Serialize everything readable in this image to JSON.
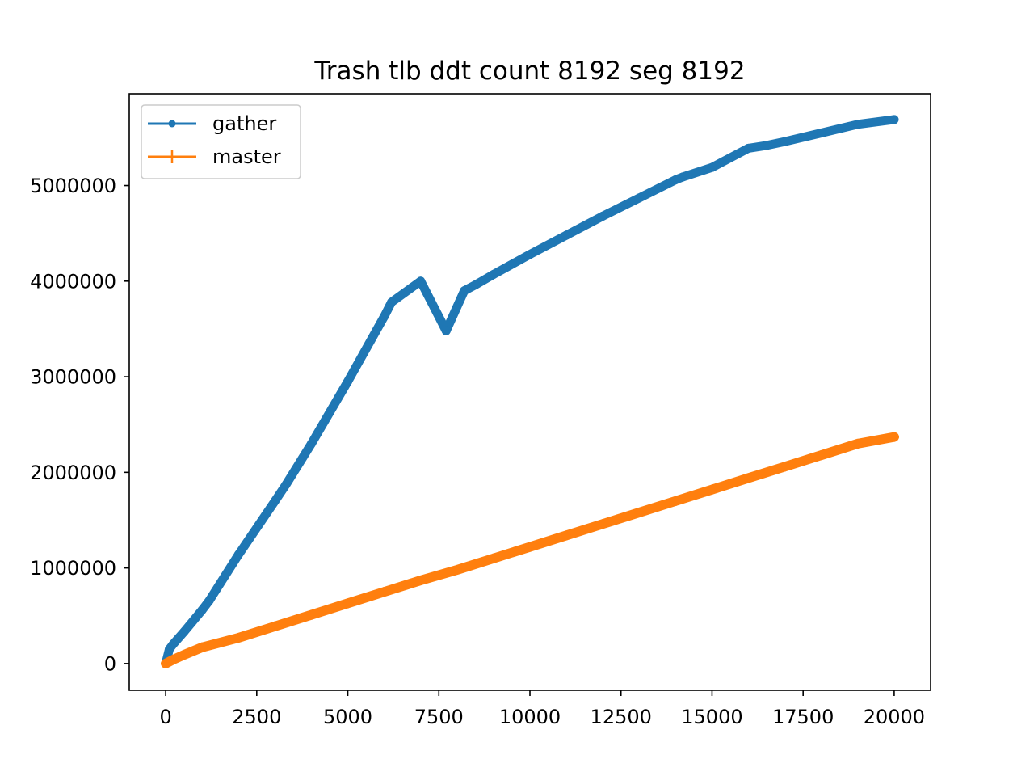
{
  "chart_data": {
    "type": "line",
    "title": "Trash tlb ddt count 8192 seg 8192",
    "xlabel": "",
    "ylabel": "",
    "xlim": [
      -1000,
      21000
    ],
    "ylim": [
      -280000,
      5960000
    ],
    "x_ticks": [
      0,
      2500,
      5000,
      7500,
      10000,
      12500,
      15000,
      17500,
      20000
    ],
    "x_tick_labels": [
      "0",
      "2500",
      "5000",
      "7500",
      "10000",
      "12500",
      "15000",
      "17500",
      "20000"
    ],
    "y_ticks": [
      0,
      1000000,
      2000000,
      3000000,
      4000000,
      5000000
    ],
    "y_tick_labels": [
      "0",
      "1000000",
      "2000000",
      "3000000",
      "4000000",
      "5000000"
    ],
    "grid": false,
    "legend_position": "upper-left",
    "series": [
      {
        "name": "gather",
        "color": "#1f77b4",
        "marker": "dot",
        "x": [
          0,
          100,
          200,
          500,
          1000,
          1200,
          2000,
          3000,
          3300,
          4000,
          5000,
          6000,
          6200,
          7000,
          7700,
          8200,
          8500,
          9000,
          10000,
          11000,
          12000,
          13000,
          14000,
          14200,
          15000,
          16000,
          16500,
          17000,
          18000,
          19000,
          20000
        ],
        "y": [
          0,
          150000,
          200000,
          330000,
          560000,
          660000,
          1140000,
          1700000,
          1870000,
          2300000,
          2950000,
          3630000,
          3780000,
          4000000,
          3480000,
          3900000,
          3960000,
          4070000,
          4280000,
          4480000,
          4680000,
          4870000,
          5060000,
          5090000,
          5190000,
          5390000,
          5420000,
          5460000,
          5550000,
          5640000,
          5690000
        ]
      },
      {
        "name": "master",
        "color": "#ff7f0e",
        "marker": "plus",
        "x": [
          0,
          200,
          500,
          1000,
          2000,
          3000,
          4000,
          5000,
          6000,
          7000,
          8000,
          9000,
          10000,
          11000,
          12000,
          13000,
          14000,
          15000,
          16000,
          17000,
          18000,
          19000,
          20000
        ],
        "y": [
          0,
          40000,
          90000,
          170000,
          270000,
          390000,
          510000,
          630000,
          750000,
          870000,
          980000,
          1100000,
          1220000,
          1340000,
          1460000,
          1580000,
          1700000,
          1820000,
          1940000,
          2060000,
          2180000,
          2300000,
          2370000
        ]
      }
    ]
  }
}
